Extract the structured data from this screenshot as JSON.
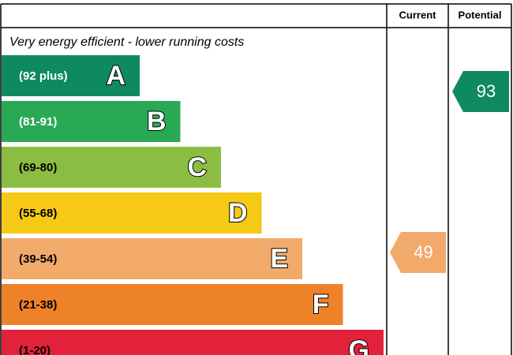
{
  "header": {
    "columns": [
      "Current",
      "Potential"
    ]
  },
  "note": "Very energy efficient - lower running costs",
  "bands": [
    {
      "range": "(92 plus)",
      "letter": "A",
      "color": "#0f8a5f"
    },
    {
      "range": "(81-91)",
      "letter": "B",
      "color": "#2aa955"
    },
    {
      "range": "(69-80)",
      "letter": "C",
      "color": "#8cbd43"
    },
    {
      "range": "(55-68)",
      "letter": "D",
      "color": "#f5c915"
    },
    {
      "range": "(39-54)",
      "letter": "E",
      "color": "#f2aa6b"
    },
    {
      "range": "(21-38)",
      "letter": "F",
      "color": "#ee8229"
    },
    {
      "range": "(1-20)",
      "letter": "G",
      "color": "#e2223b"
    }
  ],
  "current": {
    "value": 49
  },
  "potential": {
    "value": 93
  }
}
